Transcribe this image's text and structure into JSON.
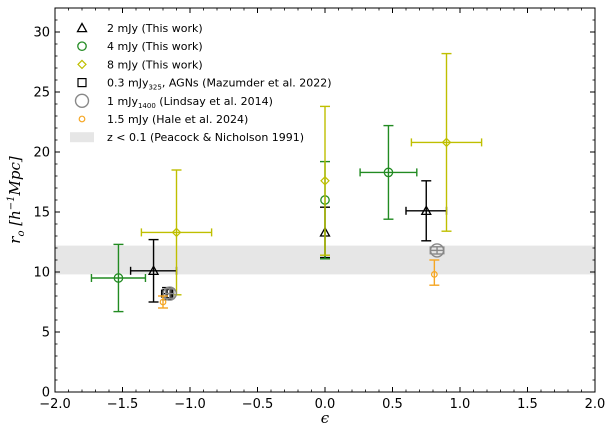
{
  "chart_data": {
    "type": "scatter",
    "xlabel": "ϵ",
    "ylabel": "r_o [h^-1 Mpc]",
    "xlim": [
      -2.0,
      2.0
    ],
    "ylim": [
      0,
      32
    ],
    "xticks": [
      -2.0,
      -1.5,
      -1.0,
      -0.5,
      0.0,
      0.5,
      1.0,
      1.5,
      2.0
    ],
    "yticks": [
      0,
      5,
      10,
      15,
      20,
      25,
      30
    ],
    "xtick_labels": [
      "−2.0",
      "−1.5",
      "−1.0",
      "−0.5",
      "0.0",
      "0.5",
      "1.0",
      "1.5",
      "2.0"
    ],
    "ytick_labels": [
      "0",
      "5",
      "10",
      "15",
      "20",
      "25",
      "30"
    ],
    "legend_position": "top-left",
    "band": {
      "label": "z < 0.1 (Peacock & Nicholson 1991)",
      "y_low": 9.8,
      "y_high": 12.2,
      "color": "#e6e6e6"
    },
    "series": [
      {
        "name": "2 mJy (This work)",
        "marker": "triangle",
        "color": "#000000",
        "points": [
          {
            "x": -1.27,
            "y": 10.1,
            "xerr": 0.17,
            "yerr_low": 2.6,
            "yerr_high": 2.6
          },
          {
            "x": 0.0,
            "y": 13.3,
            "xerr": 0.0,
            "yerr_low": 2.1,
            "yerr_high": 2.1
          },
          {
            "x": 0.75,
            "y": 15.1,
            "xerr": 0.15,
            "yerr_low": 2.5,
            "yerr_high": 2.5
          }
        ]
      },
      {
        "name": "4 mJy (This work)",
        "marker": "circle",
        "color": "#228b22",
        "points": [
          {
            "x": -1.53,
            "y": 9.5,
            "xerr": 0.2,
            "yerr_low": 2.8,
            "yerr_high": 2.8
          },
          {
            "x": 0.0,
            "y": 16.0,
            "xerr": 0.0,
            "yerr_low": 4.9,
            "yerr_high": 3.2
          },
          {
            "x": 0.47,
            "y": 18.3,
            "xerr": 0.21,
            "yerr_low": 3.9,
            "yerr_high": 3.9
          }
        ]
      },
      {
        "name": "8 mJy (This work)",
        "marker": "diamond",
        "color": "#bfbf00",
        "points": [
          {
            "x": -1.1,
            "y": 13.3,
            "xerr": 0.26,
            "yerr_low": 5.2,
            "yerr_high": 5.2
          },
          {
            "x": 0.0,
            "y": 17.6,
            "xerr": 0.0,
            "yerr_low": 6.2,
            "yerr_high": 6.2
          },
          {
            "x": 0.9,
            "y": 20.8,
            "xerr": 0.26,
            "yerr_low": 7.4,
            "yerr_high": 7.4
          }
        ]
      },
      {
        "name": "0.3 mJy325, AGNs (Mazumder et al. 2022)",
        "marker": "square",
        "color": "#000000",
        "points": [
          {
            "x": -1.17,
            "y": 8.2,
            "xerr": 0.04,
            "yerr_low": 0.5,
            "yerr_high": 0.5
          }
        ]
      },
      {
        "name": "1 mJy1400 (Lindsay et al. 2014)",
        "marker": "bigcircle",
        "color": "#888888",
        "points": [
          {
            "x": -1.15,
            "y": 8.2,
            "xerr": 0.03,
            "yerr_low": 0.4,
            "yerr_high": 0.4
          },
          {
            "x": 0.83,
            "y": 11.8,
            "xerr": 0.05,
            "yerr_low": 0.3,
            "yerr_high": 0.3
          }
        ]
      },
      {
        "name": "1.5 mJy (Hale et al. 2024)",
        "marker": "smallcircle",
        "color": "#f5a623",
        "points": [
          {
            "x": -1.2,
            "y": 7.5,
            "xerr": 0.0,
            "yerr_low": 0.5,
            "yerr_high": 0.5
          },
          {
            "x": 0.81,
            "y": 9.8,
            "xerr": 0.0,
            "yerr_low": 0.9,
            "yerr_high": 1.2
          }
        ]
      }
    ]
  }
}
